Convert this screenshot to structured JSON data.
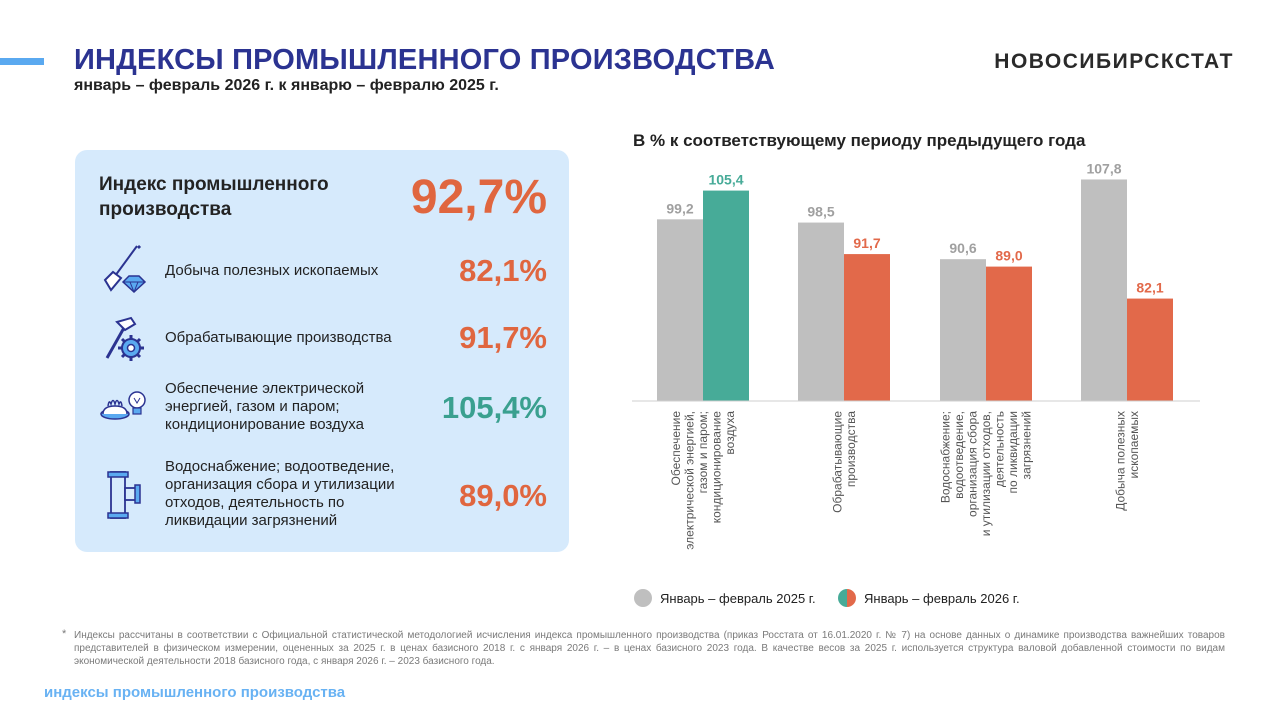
{
  "header": {
    "title": "ИНДЕКСЫ ПРОМЫШЛЕННОГО ПРОИЗВОДСТВА",
    "subtitle": "январь – февраль 2026 г. к январю – февралю 2025 г.",
    "brand": "НОВОСИБИРСКСТАТ"
  },
  "panel": {
    "main_label": "Индекс промышленного производства",
    "main_value": "92,7%",
    "rows": [
      {
        "label": "Добыча полезных ископаемых",
        "value": "82,1%",
        "icon": "shovel-diamond-icon",
        "color": "#e0663f"
      },
      {
        "label": "Обрабатывающие производства",
        "value": "91,7%",
        "icon": "hammer-gear-icon",
        "color": "#e0663f"
      },
      {
        "label": "Обеспечение электрической энергией, газом и паром; кондиционирование воздуха",
        "value": "105,4%",
        "icon": "gas-flame-lightbulb-icon",
        "color": "#3aa08f"
      },
      {
        "label": "Водоснабжение; водоотведение, организация сбора и утилизации отходов, деятельность по ликвидации загрязнений",
        "value": "89,0%",
        "icon": "pipe-icon",
        "color": "#e0663f"
      }
    ]
  },
  "colors": {
    "grey": "#bfbfbf",
    "orange": "#e2694a",
    "teal": "#47ab98",
    "accent": "#2b3391"
  },
  "chart_data": {
    "type": "bar",
    "title": "В % к соответствующему периоду предыдущего года",
    "categories": [
      "Обеспечение электрической энергией, газом и паром; кондиционирование воздуха",
      "Обрабатывающие производства",
      "Водоснабжение; водоотведение, организация сбора и утилизации отходов, деятельность по ликвидации загрязнений",
      "Добыча полезных ископаемых"
    ],
    "category_lines": [
      [
        "Обеспечение",
        "электрической энергией,",
        "газом и паром;",
        "кондиционирование",
        "воздуха"
      ],
      [
        "Обрабатывающие",
        "производства"
      ],
      [
        "Водоснабжение;",
        "водоотведение,",
        "организация сбора",
        "и утилизации отходов,",
        "деятельность",
        "по ликвидации",
        "загрязнений"
      ],
      [
        "Добыча полезных",
        "ископаемых"
      ]
    ],
    "series": [
      {
        "name": "Январь – февраль 2025 г.",
        "values": [
          99.2,
          98.5,
          90.6,
          107.8
        ]
      },
      {
        "name": "Январь – февраль 2026 г.",
        "values": [
          105.4,
          91.7,
          89.0,
          82.1
        ]
      }
    ],
    "value_labels": [
      [
        "99,2",
        "98,5",
        "90,6",
        "107,8"
      ],
      [
        "105,4",
        "91,7",
        "89,0",
        "82,1"
      ]
    ],
    "ylim": [
      60,
      112
    ],
    "xlabel": "",
    "ylabel": ""
  },
  "legend": {
    "items": [
      "Январь – февраль 2025 г.",
      "Январь – февраль 2026 г."
    ]
  },
  "footnote": {
    "star": "*",
    "text": "Индексы рассчитаны в соответствии с Официальной статистической методологией исчисления индекса промышленного производства (приказ Росстата от 16.01.2020 г. № 7) на основе данных о динамике производства важнейших товаров представителей в физическом измерении, оцененных за 2025 г. в ценах базисного 2018 г. с января 2026 г. – в ценах базисного 2023 года. В качестве весов за 2025 г. используется структура валовой добавленной стоимости по видам экономической деятельности 2018 базисного года, с января 2026 г. – 2023 базисного года."
  },
  "footer": {
    "tag": "индексы промышленного производства"
  }
}
